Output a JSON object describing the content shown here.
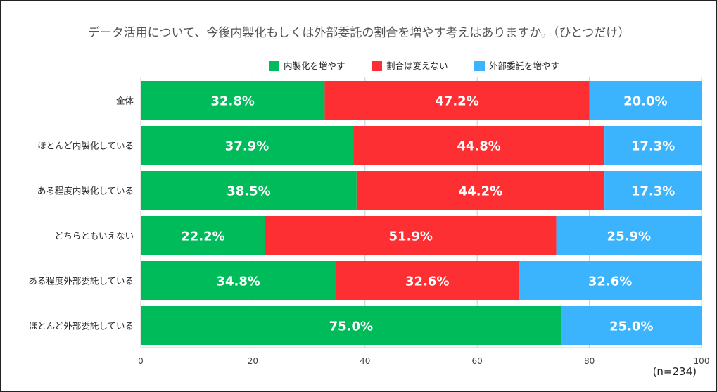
{
  "chart_data": {
    "type": "bar",
    "orientation": "horizontal",
    "stacked": true,
    "title": "データ活用について、今後内製化もしくは外部委託の割合を増やす考えはありますか。（ひとつだけ）",
    "categories": [
      "全体",
      "ほとんど内製化している",
      "ある程度内製化している",
      "どちらともいえない",
      "ある程度外部委託している",
      "ほとんど外部委託している"
    ],
    "series": [
      {
        "name": "内製化を増やす",
        "color": "#00bb5a",
        "values": [
          32.8,
          37.9,
          38.5,
          22.2,
          34.8,
          75.0
        ],
        "labels": [
          "32.8%",
          "37.9%",
          "38.5%",
          "22.2%",
          "34.8%",
          "75.0%"
        ]
      },
      {
        "name": "割合は変えない",
        "color": "#fe2f33",
        "values": [
          47.2,
          44.8,
          44.2,
          51.9,
          32.6,
          0
        ],
        "labels": [
          "47.2%",
          "44.8%",
          "44.2%",
          "51.9%",
          "32.6%",
          ""
        ]
      },
      {
        "name": "外部委託を増やす",
        "color": "#3bb4fd",
        "values": [
          20.0,
          17.3,
          17.3,
          25.9,
          32.6,
          25.0
        ],
        "labels": [
          "20.0%",
          "17.3%",
          "17.3%",
          "25.9%",
          "32.6%",
          "25.0%"
        ]
      }
    ],
    "xlim": [
      0,
      100
    ],
    "xticks": [
      "0",
      "20",
      "40",
      "60",
      "80",
      "100"
    ],
    "grid": true,
    "legend_position": "top-right",
    "note": "(n=234)"
  }
}
